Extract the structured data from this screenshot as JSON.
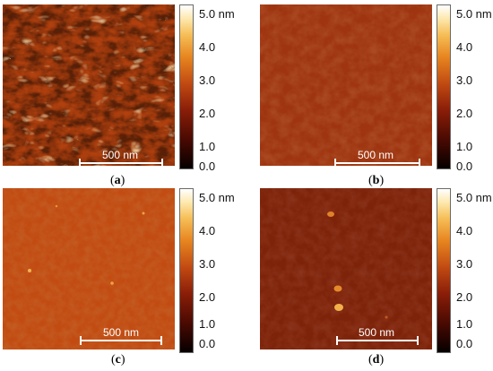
{
  "panels": [
    {
      "id": "a",
      "label": "a",
      "scale_text": "500 nm"
    },
    {
      "id": "b",
      "label": "b",
      "scale_text": "500 nm"
    },
    {
      "id": "c",
      "label": "c",
      "scale_text": "500 nm"
    },
    {
      "id": "d",
      "label": "d",
      "scale_text": "500 nm"
    }
  ],
  "colorbar": {
    "ticks": [
      "5.0 nm",
      "4.0",
      "3.0",
      "2.0",
      "1.0",
      "0.0"
    ],
    "colormap": [
      "#050000",
      "#4a0a02",
      "#8a1e08",
      "#c14a12",
      "#e6841f",
      "#f6be57",
      "#fde9b0",
      "#ffffff"
    ]
  },
  "labels": {
    "open": "(",
    "close": ")"
  }
}
